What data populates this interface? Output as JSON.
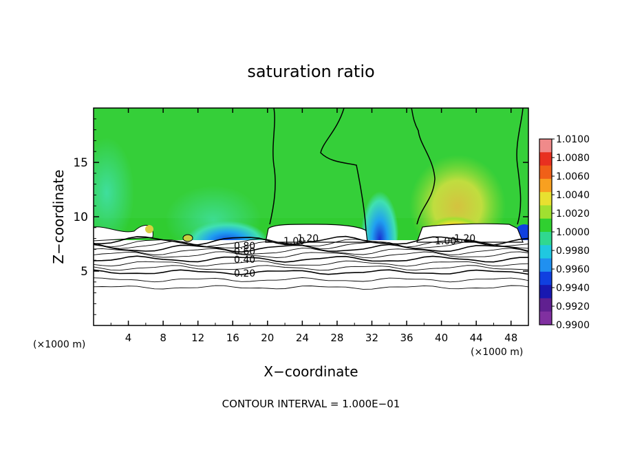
{
  "chart_data": {
    "type": "heatmap",
    "title": "saturation ratio",
    "xlabel": "X−coordinate",
    "ylabel": "Z−coordinate",
    "x_unit_left": "(×1000 m)",
    "x_unit_right": "(×1000 m)",
    "footer": "CONTOUR INTERVAL = 1.000E−01",
    "xlim": [
      0,
      50
    ],
    "ylim": [
      0,
      20
    ],
    "xticks": [
      4,
      8,
      12,
      16,
      20,
      24,
      28,
      32,
      36,
      40,
      44,
      48
    ],
    "yticks": [
      5,
      10,
      15
    ],
    "colorbar": {
      "labels": [
        "1.0100",
        "1.0080",
        "1.0060",
        "1.0040",
        "1.0020",
        "1.0000",
        "0.9980",
        "0.9960",
        "0.9940",
        "0.9920",
        "0.9900"
      ],
      "colors": [
        "#f08a8a",
        "#e83020",
        "#f06018",
        "#f8a020",
        "#e8e030",
        "#a0e030",
        "#30d030",
        "#30d890",
        "#20c8e0",
        "#2090f0",
        "#1040e0",
        "#1818b0",
        "#602090",
        "#8030a0"
      ]
    },
    "contour_labels": [
      "1.00",
      "1.20",
      "1.00",
      "1.20",
      "0.80",
      "0.60",
      "0.40",
      "0.20"
    ],
    "contour_levels_y": [
      3.5,
      4.2,
      4.9,
      5.3,
      5.7,
      6.1,
      6.5,
      6.8,
      7.1,
      7.4,
      7.6,
      7.8
    ]
  }
}
